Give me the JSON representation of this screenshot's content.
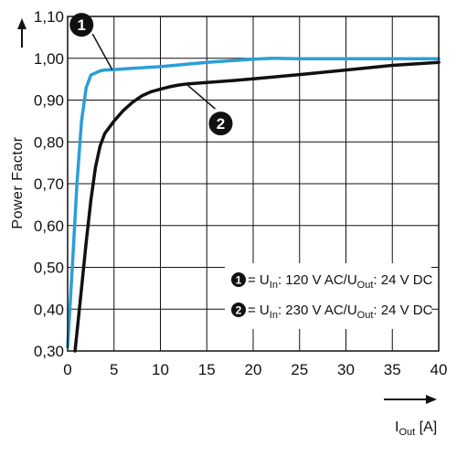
{
  "chart_data": {
    "type": "line",
    "ylabel": "Power Factor",
    "xlabel_main": "I",
    "xlabel_sub": "Out",
    "xlabel_unit": " [A]",
    "xlim": [
      0,
      40
    ],
    "ylim": [
      0.3,
      1.1
    ],
    "x_ticks": [
      0,
      5,
      10,
      15,
      20,
      25,
      30,
      35,
      40
    ],
    "x_tick_labels": [
      "0",
      "5",
      "10",
      "15",
      "20",
      "25",
      "30",
      "35",
      "40"
    ],
    "y_ticks": [
      0.3,
      0.4,
      0.5,
      0.6,
      0.7,
      0.8,
      0.9,
      1.0,
      1.1
    ],
    "y_tick_labels": [
      "0,30",
      "0,40",
      "0,50",
      "0,60",
      "0,70",
      "0,80",
      "0,90",
      "1,00",
      "1,10"
    ],
    "grid": true,
    "series": [
      {
        "id": "1",
        "color": "#2a9fd8",
        "x": [
          0.0,
          0.5,
          1.0,
          1.5,
          2.0,
          2.5,
          3.0,
          3.5,
          4.0,
          5.0,
          7.0,
          10.0,
          15.0,
          20.0,
          22.0,
          25.0,
          30.0,
          35.0,
          40.0
        ],
        "y": [
          0.31,
          0.5,
          0.7,
          0.85,
          0.93,
          0.96,
          0.965,
          0.97,
          0.972,
          0.973,
          0.976,
          0.98,
          0.99,
          0.998,
          1.0,
          0.999,
          0.999,
          0.999,
          0.999
        ]
      },
      {
        "id": "2",
        "color": "#111111",
        "x": [
          0.8,
          1.5,
          2.0,
          2.5,
          3.0,
          3.5,
          4.0,
          5.0,
          6.0,
          7.0,
          8.0,
          9.0,
          10.0,
          11.0,
          12.0,
          13.0,
          15.0,
          18.0,
          20.0,
          25.0,
          30.0,
          35.0,
          40.0
        ],
        "y": [
          0.3,
          0.45,
          0.56,
          0.66,
          0.74,
          0.79,
          0.82,
          0.85,
          0.875,
          0.895,
          0.91,
          0.92,
          0.926,
          0.932,
          0.936,
          0.939,
          0.942,
          0.947,
          0.951,
          0.961,
          0.972,
          0.983,
          0.99
        ]
      }
    ],
    "markers": [
      {
        "label": "1",
        "x": 1.5,
        "y": 1.08
      },
      {
        "label": "2",
        "x": 16.5,
        "y": 0.844
      }
    ],
    "legend_placement": "bottom-right",
    "legend": [
      {
        "num": "1",
        "u_in": "U",
        "sub_in": "In",
        "mid": ": 120 V AC/U",
        "sub_out": "Out",
        "end": ": 24 V DC"
      },
      {
        "num": "2",
        "u_in": "U",
        "sub_in": "In",
        "mid": ": 230 V AC/U",
        "sub_out": "Out",
        "end": ": 24 V DC"
      }
    ]
  }
}
